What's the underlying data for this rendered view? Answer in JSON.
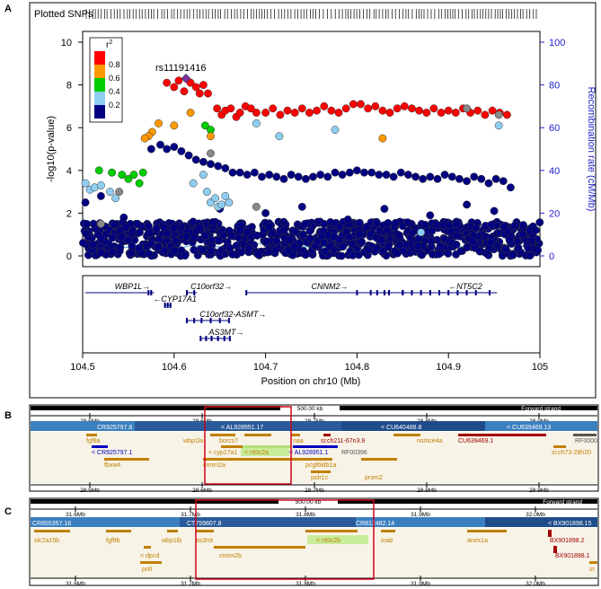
{
  "panels": {
    "a": {
      "label": "A"
    },
    "b": {
      "label": "B"
    },
    "c": {
      "label": "C"
    }
  },
  "plotted_snps_label": "Plotted SNPs",
  "lead_snp": "rs11191416",
  "legend": {
    "title_base": "r",
    "title_sup": "2",
    "ticks": [
      "0.8",
      "0.6",
      "0.4",
      "0.2"
    ],
    "colors": [
      "#ff0000",
      "#ff9900",
      "#00cc00",
      "#8fcdf1",
      "#000080"
    ],
    "lead_color": "#7f2f9f"
  },
  "chart_data": {
    "type": "scatter",
    "xlabel": "Position on chr10 (Mb)",
    "ylabel_left": "-log10(p-value)",
    "ylabel_right": "Recombination rate (cM/Mb)",
    "xlim": [
      104.5,
      105.0
    ],
    "ylim": [
      0,
      10
    ],
    "ylim_right": [
      0,
      100
    ],
    "x_ticks": [
      "104.5",
      "104.6",
      "104.7",
      "104.8",
      "104.9",
      "105"
    ],
    "y_ticks": [
      "0",
      "2",
      "4",
      "6",
      "8",
      "10"
    ],
    "y_right_ticks": [
      "0",
      "20",
      "40",
      "60",
      "80",
      "100"
    ],
    "lead_snp": {
      "x": 104.613,
      "y": 8.3
    },
    "series": [
      {
        "r2": "0.8-1.0",
        "color": "#ff0000",
        "points": [
          [
            104.592,
            8.1
          ],
          [
            104.6,
            7.9
          ],
          [
            104.605,
            8.2
          ],
          [
            104.611,
            7.7
          ],
          [
            104.618,
            8.1
          ],
          [
            104.624,
            7.9
          ],
          [
            104.628,
            7.6
          ],
          [
            104.632,
            8.0
          ],
          [
            104.637,
            7.6
          ],
          [
            104.647,
            6.9
          ],
          [
            104.652,
            6.6
          ],
          [
            104.656,
            6.8
          ],
          [
            104.662,
            6.9
          ],
          [
            104.668,
            6.5
          ],
          [
            104.672,
            6.7
          ],
          [
            104.678,
            7.0
          ],
          [
            104.684,
            6.9
          ],
          [
            104.69,
            6.7
          ],
          [
            104.7,
            6.7
          ],
          [
            104.708,
            6.9
          ],
          [
            104.716,
            6.6
          ],
          [
            104.724,
            6.8
          ],
          [
            104.732,
            6.7
          ],
          [
            104.74,
            6.9
          ],
          [
            104.748,
            6.7
          ],
          [
            104.756,
            6.8
          ],
          [
            104.764,
            7.0
          ],
          [
            104.772,
            6.8
          ],
          [
            104.78,
            6.7
          ],
          [
            104.788,
            6.9
          ],
          [
            104.796,
            7.1
          ],
          [
            104.804,
            7.1
          ],
          [
            104.812,
            6.9
          ],
          [
            104.82,
            7.0
          ],
          [
            104.828,
            6.8
          ],
          [
            104.836,
            6.7
          ],
          [
            104.844,
            6.9
          ],
          [
            104.852,
            7.0
          ],
          [
            104.86,
            6.9
          ],
          [
            104.868,
            6.8
          ],
          [
            104.876,
            6.7
          ],
          [
            104.884,
            6.9
          ],
          [
            104.892,
            6.7
          ],
          [
            104.9,
            6.8
          ],
          [
            104.908,
            6.7
          ],
          [
            104.916,
            6.9
          ],
          [
            104.924,
            6.7
          ],
          [
            104.932,
            6.8
          ],
          [
            104.94,
            6.6
          ],
          [
            104.948,
            6.8
          ],
          [
            104.956,
            6.7
          ],
          [
            104.964,
            6.6
          ]
        ]
      },
      {
        "r2": "0.6-0.8",
        "color": "#ff9900",
        "points": [
          [
            104.583,
            6.2
          ],
          [
            104.576,
            5.8
          ],
          [
            104.572,
            5.6
          ],
          [
            104.568,
            5.5
          ],
          [
            104.6,
            6.1
          ],
          [
            104.618,
            6.7
          ],
          [
            104.64,
            5.6
          ],
          [
            104.828,
            5.5
          ]
        ]
      },
      {
        "r2": "0.4-0.6",
        "color": "#00cc00",
        "points": [
          [
            104.518,
            4.0
          ],
          [
            104.532,
            3.9
          ],
          [
            104.543,
            3.8
          ],
          [
            104.55,
            3.6
          ],
          [
            104.556,
            3.8
          ],
          [
            104.562,
            3.4
          ],
          [
            104.566,
            3.9
          ],
          [
            104.634,
            6.1
          ],
          [
            104.64,
            5.9
          ]
        ]
      },
      {
        "r2": "0.2-0.4",
        "color": "#8fcdf1",
        "points": [
          [
            104.503,
            3.4
          ],
          [
            104.508,
            3.1
          ],
          [
            104.513,
            3.2
          ],
          [
            104.52,
            3.3
          ],
          [
            104.53,
            3.0
          ],
          [
            104.536,
            2.7
          ],
          [
            104.621,
            3.4
          ],
          [
            104.632,
            3.8
          ],
          [
            104.636,
            3.0
          ],
          [
            104.64,
            2.5
          ],
          [
            104.645,
            2.7
          ],
          [
            104.648,
            2.3
          ],
          [
            104.652,
            2.4
          ],
          [
            104.656,
            2.8
          ],
          [
            104.66,
            2.5
          ],
          [
            104.69,
            6.2
          ],
          [
            104.715,
            5.6
          ],
          [
            104.776,
            5.9
          ],
          [
            104.955,
            6.1
          ],
          [
            104.87,
            1.1
          ]
        ]
      },
      {
        "r2": "0.0-0.2",
        "color": "#000080",
        "points": [
          [
            104.503,
            2.5
          ],
          [
            104.52,
            2.8
          ],
          [
            104.545,
            1.8
          ],
          [
            104.56,
            1.5
          ],
          [
            104.575,
            5.0
          ],
          [
            104.585,
            5.2
          ],
          [
            104.592,
            5.0
          ],
          [
            104.6,
            5.1
          ],
          [
            104.608,
            4.9
          ],
          [
            104.616,
            4.7
          ],
          [
            104.624,
            4.5
          ],
          [
            104.632,
            4.4
          ],
          [
            104.64,
            4.3
          ],
          [
            104.648,
            4.2
          ],
          [
            104.656,
            4.1
          ],
          [
            104.664,
            3.9
          ],
          [
            104.672,
            3.9
          ],
          [
            104.68,
            3.8
          ],
          [
            104.688,
            3.9
          ],
          [
            104.696,
            3.7
          ],
          [
            104.704,
            3.8
          ],
          [
            104.712,
            3.7
          ],
          [
            104.72,
            3.6
          ],
          [
            104.728,
            3.8
          ],
          [
            104.736,
            3.7
          ],
          [
            104.744,
            3.6
          ],
          [
            104.752,
            3.7
          ],
          [
            104.76,
            3.8
          ],
          [
            104.768,
            3.7
          ],
          [
            104.776,
            3.9
          ],
          [
            104.784,
            3.8
          ],
          [
            104.792,
            3.9
          ],
          [
            104.8,
            4.0
          ],
          [
            104.808,
            3.9
          ],
          [
            104.816,
            3.9
          ],
          [
            104.824,
            3.8
          ],
          [
            104.832,
            3.8
          ],
          [
            104.84,
            3.7
          ],
          [
            104.848,
            3.9
          ],
          [
            104.856,
            3.8
          ],
          [
            104.864,
            3.7
          ],
          [
            104.872,
            3.6
          ],
          [
            104.88,
            3.7
          ],
          [
            104.888,
            3.6
          ],
          [
            104.896,
            3.8
          ],
          [
            104.904,
            3.7
          ],
          [
            104.912,
            3.6
          ],
          [
            104.92,
            3.5
          ],
          [
            104.928,
            3.7
          ],
          [
            104.936,
            3.6
          ],
          [
            104.944,
            3.4
          ],
          [
            104.952,
            3.6
          ],
          [
            104.96,
            3.5
          ],
          [
            104.968,
            3.2
          ],
          [
            104.65,
            2.2
          ],
          [
            104.7,
            2.0
          ],
          [
            104.74,
            2.3
          ],
          [
            104.79,
            1.7
          ],
          [
            104.83,
            2.2
          ],
          [
            104.88,
            1.9
          ],
          [
            104.92,
            2.4
          ],
          [
            104.95,
            2.1
          ],
          [
            104.6,
            1.3
          ],
          [
            104.72,
            1.2
          ],
          [
            104.85,
            1.4
          ],
          [
            104.93,
            1.3
          ]
        ]
      }
    ],
    "band_density": [
      8,
      10,
      9,
      8,
      11,
      9,
      12,
      10,
      9,
      8,
      10,
      11,
      9,
      10,
      12,
      8,
      9,
      11,
      10,
      9,
      8,
      10,
      9,
      11,
      10
    ],
    "grey_points": [
      [
        104.54,
        3.0
      ],
      [
        104.52,
        1.5
      ],
      [
        104.64,
        4.8
      ],
      [
        104.69,
        2.3
      ],
      [
        104.92,
        6.9
      ],
      [
        104.955,
        6.6
      ]
    ],
    "recombination": [
      [
        104.5,
        5
      ],
      [
        104.55,
        4
      ],
      [
        104.6,
        3
      ],
      [
        104.62,
        5
      ],
      [
        104.64,
        4
      ],
      [
        104.7,
        6
      ],
      [
        104.75,
        4
      ],
      [
        104.8,
        5
      ],
      [
        104.85,
        3
      ],
      [
        104.9,
        4
      ],
      [
        104.95,
        5
      ],
      [
        105.0,
        4
      ]
    ]
  },
  "genes": [
    {
      "label": "WBP1L",
      "dir": "right",
      "start": 104.503,
      "end": 104.578,
      "row": 0,
      "label_at": 104.535,
      "exons": [
        104.572,
        104.575
      ]
    },
    {
      "label": "C10orf32",
      "dir": "right",
      "start": 104.614,
      "end": 104.625,
      "row": 0,
      "label_at": 104.618,
      "exons": [
        104.614,
        104.622
      ]
    },
    {
      "label": "CNNM2",
      "dir": "right",
      "start": 104.679,
      "end": 104.854,
      "row": 0,
      "label_at": 104.75,
      "exons": [
        104.679,
        104.8,
        104.815,
        104.822,
        104.83,
        104.835,
        104.85
      ]
    },
    {
      "label": "NT5C2",
      "dir": "left",
      "start": 104.845,
      "end": 104.953,
      "row": 0,
      "label_at": 104.9,
      "exons": [
        104.85,
        104.86,
        104.87,
        104.88,
        104.89,
        104.9,
        104.91,
        104.92,
        104.93,
        104.945
      ]
    },
    {
      "label": "CYP17A1",
      "dir": "left",
      "start": 104.59,
      "end": 104.597,
      "row": 1,
      "label_at": 104.577,
      "exons": [
        104.59,
        104.593,
        104.596
      ]
    },
    {
      "label": "C10orf32-ASMT",
      "dir": "right",
      "start": 104.614,
      "end": 104.66,
      "row": 2,
      "label_at": 104.628,
      "exons": [
        104.614,
        104.622,
        104.63,
        104.64,
        104.65,
        104.66
      ]
    },
    {
      "label": "AS3MT",
      "dir": "right",
      "start": 104.629,
      "end": 104.661,
      "row": 3,
      "label_at": 104.638,
      "exons": [
        104.629,
        104.635,
        104.641,
        104.648,
        104.655,
        104.661
      ]
    }
  ],
  "browser_b": {
    "scale_label": "500.00 kb",
    "strand_label": "Forward strand",
    "ticks": [
      "28.5Mb",
      "28.6Mb",
      "28.7Mb",
      "28.8Mb",
      "28.9Mb"
    ],
    "contigs": [
      "CR925797.8",
      "< AL928951.17",
      "< CU640488.8",
      "< CU639469.13"
    ],
    "genes": [
      {
        "label": "fgf8a",
        "color": "#c08000"
      },
      {
        "label": "wbp1la",
        "color": "#c08000"
      },
      {
        "label": "borcs7",
        "color": "#c08000"
      },
      {
        "label": "naa",
        "color": "#c08000"
      },
      {
        "label": "si:ch211-67n3.9",
        "color": "#a00000"
      },
      {
        "label": "nsmce4a",
        "color": "#c08000"
      },
      {
        "label": "CU639469.1",
        "color": "#a00000"
      },
      {
        "label": "RF0000",
        "color": "#555555"
      },
      {
        "label": "< CR925797.1",
        "color": "#0000c0"
      },
      {
        "label": "< cyp17a1",
        "color": "#c08000"
      },
      {
        "label": "< nt5c2a",
        "color": "#c08000"
      },
      {
        "label": "< AL928951.1",
        "color": "#0000c0"
      },
      {
        "label": "RF00396",
        "color": "#555555"
      },
      {
        "label": "si:ch73-28h20",
        "color": "#c08000"
      },
      {
        "label": "fbxw4",
        "color": "#c08000"
      },
      {
        "label": "cnnm2a",
        "color": "#c08000"
      },
      {
        "label": "pcgf6ldb1a",
        "color": "#c08000"
      },
      {
        "label": "polr1c",
        "color": "#c08000"
      },
      {
        "label": "prom2",
        "color": "#c08000"
      }
    ]
  },
  "browser_c": {
    "scale_label": "500.00 kb",
    "strand_label": "Forward strand",
    "ticks": [
      "31.6Mb",
      "31.7Mb",
      "31.8Mb",
      "31.9Mb",
      "32.0Mb"
    ],
    "contigs": [
      "CR855357.16",
      "CT759807.8",
      "CR812482.14",
      "< BX901898.15"
    ],
    "genes": [
      {
        "label": "slc2a15b",
        "color": "#c08000"
      },
      {
        "label": "fgf8b",
        "color": "#c08000"
      },
      {
        "label": "wbp1lb",
        "color": "#c08000"
      },
      {
        "label": "as3mt",
        "color": "#c08000"
      },
      {
        "label": "< nt5c2b",
        "color": "#c08000"
      },
      {
        "label": "inab",
        "color": "#c08000"
      },
      {
        "label": "anos1a",
        "color": "#c08000"
      },
      {
        "label": "BX901898.2",
        "color": "#a00000"
      },
      {
        "label": "< dpcd",
        "color": "#c08000"
      },
      {
        "label": "cnnm2b",
        "color": "#c08000"
      },
      {
        "label": "BX901898.1",
        "color": "#a00000"
      },
      {
        "label": "polI",
        "color": "#c08000"
      },
      {
        "label": "st",
        "color": "#c08000"
      }
    ]
  }
}
